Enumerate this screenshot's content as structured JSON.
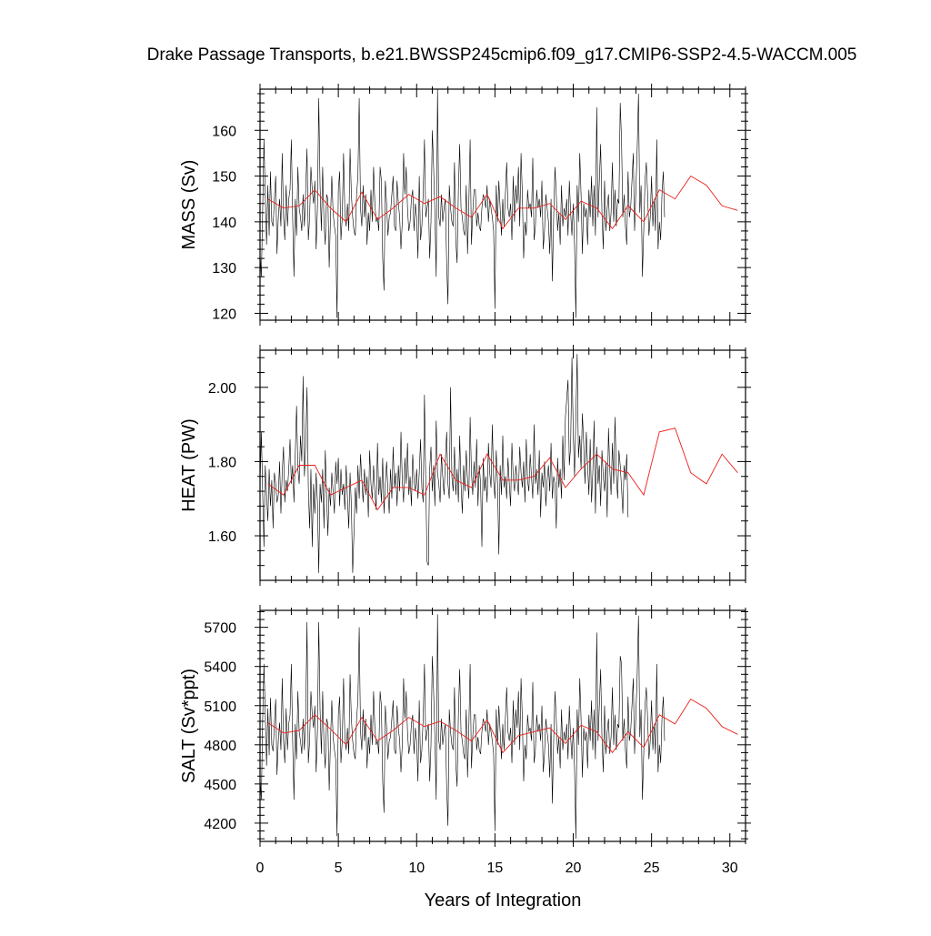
{
  "title": "Drake Passage Transports, b.e21.BWSSP245cmip6.f09_g17.CMIP6-SSP2-4.5-WACCM.005",
  "xlabel": "Years of Integration",
  "colors": {
    "monthly": "#000000",
    "annual": "#e8201a"
  },
  "chart_data": [
    {
      "type": "line",
      "ylabel": "MASS (Sv)",
      "xlim": [
        0,
        31
      ],
      "ylim": [
        118.5,
        169
      ],
      "xticks": [
        0,
        5,
        10,
        15,
        20,
        25,
        30
      ],
      "yticks": [
        120,
        130,
        140,
        150,
        160
      ],
      "ytick_labels": [
        "120",
        "130",
        "140",
        "150",
        "160"
      ],
      "grid": false,
      "annual": {
        "x": [
          0.5,
          1.5,
          2.5,
          3.5,
          4.5,
          5.5,
          6.5,
          7.5,
          8.5,
          9.5,
          10.5,
          11.5,
          12.5,
          13.5,
          14.5,
          15.5,
          16.5,
          17.5,
          18.5,
          19.5,
          20.5,
          21.5,
          22.5,
          23.5,
          24.5,
          25.5,
          26.5,
          27.5,
          28.5,
          29.5,
          30.5
        ],
        "y": [
          145,
          143,
          143.5,
          147,
          143,
          140,
          146.5,
          140.5,
          143,
          146,
          144,
          145.5,
          143,
          141,
          146,
          138.5,
          143,
          143,
          144,
          140.5,
          144.5,
          143,
          138.5,
          143.5,
          140,
          147,
          145,
          150,
          148,
          143.5,
          142.5
        ]
      },
      "monthly": {
        "start": 0,
        "step": 0.08333,
        "y": [
          133,
          128,
          142,
          158,
          146,
          135,
          148,
          137,
          151,
          140,
          139,
          145,
          150,
          133,
          141,
          145,
          139,
          155,
          141,
          136,
          148,
          139,
          145,
          147,
          158,
          141,
          128,
          145,
          137,
          152,
          143,
          141,
          138,
          146,
          139,
          147,
          156,
          136,
          141,
          152,
          147,
          144,
          149,
          134,
          143,
          167,
          148,
          138,
          152,
          140,
          135,
          146,
          145,
          130,
          141,
          150,
          142,
          139,
          137,
          119,
          147,
          151,
          136,
          141,
          155,
          142,
          139,
          144,
          138,
          156,
          146,
          141,
          138,
          137,
          146,
          150,
          167,
          143,
          139,
          148,
          141,
          146,
          135,
          142,
          138,
          147,
          140,
          152,
          144,
          140,
          141,
          138,
          152,
          149,
          132,
          125,
          149,
          144,
          137,
          141,
          142,
          146,
          150,
          139,
          138,
          149,
          144,
          141,
          134,
          140,
          155,
          146,
          152,
          143,
          138,
          140,
          145,
          147,
          138,
          144,
          141,
          132,
          150,
          136,
          139,
          146,
          158,
          141,
          143,
          145,
          132,
          140,
          160,
          152,
          142,
          128,
          169,
          141,
          139,
          146,
          140,
          143,
          145,
          131,
          122,
          148,
          143,
          140,
          139,
          153,
          136,
          131,
          147,
          157,
          143,
          141,
          138,
          137,
          148,
          133,
          144,
          158,
          135,
          142,
          147,
          147,
          139,
          142,
          139,
          138,
          143,
          146,
          145,
          143,
          148,
          140,
          145,
          143,
          141,
          138,
          121,
          148,
          140,
          149,
          143,
          137,
          145,
          139,
          146,
          153,
          143,
          141,
          144,
          136,
          150,
          140,
          148,
          144,
          152,
          139,
          155,
          146,
          132,
          140,
          137,
          147,
          143,
          144,
          141,
          154,
          136,
          139,
          147,
          143,
          145,
          141,
          149,
          134,
          138,
          146,
          143,
          140,
          133,
          145,
          127,
          141,
          152,
          146,
          138,
          142,
          135,
          148,
          139,
          143,
          141,
          145,
          137,
          149,
          142,
          137,
          144,
          135,
          119,
          148,
          140,
          155,
          146,
          133,
          144,
          141,
          143,
          135,
          147,
          141,
          150,
          139,
          148,
          137,
          165,
          141,
          149,
          157,
          142,
          134,
          149,
          138,
          143,
          146,
          138,
          142,
          153,
          140,
          147,
          139,
          145,
          144,
          166,
          158,
          141,
          146,
          139,
          135,
          151,
          141,
          143,
          149,
          155,
          138,
          147,
          156,
          168,
          142,
          148,
          128,
          138,
          149,
          153,
          146,
          137,
          141,
          150,
          139,
          145,
          138,
          158,
          134,
          140,
          136,
          146,
          151,
          141
        ]
      }
    },
    {
      "type": "line",
      "ylabel": "HEAT (PW)",
      "xlim": [
        0,
        31
      ],
      "ylim": [
        1.48,
        2.1
      ],
      "xticks": [
        0,
        5,
        10,
        15,
        20,
        25,
        30
      ],
      "yticks": [
        1.6,
        1.8,
        2.0
      ],
      "ytick_labels": [
        "1.60",
        "1.80",
        "2.00"
      ],
      "grid": false,
      "annual": {
        "x": [
          0.5,
          1.5,
          2.5,
          3.5,
          4.5,
          5.5,
          6.5,
          7.5,
          8.5,
          9.5,
          10.5,
          11.5,
          12.5,
          13.5,
          14.5,
          15.5,
          16.5,
          17.5,
          18.5,
          19.5,
          20.5,
          21.5,
          22.5,
          23.5,
          24.5,
          25.5,
          26.5,
          27.5,
          28.5,
          29.5,
          30.5
        ],
        "y": [
          1.74,
          1.71,
          1.79,
          1.79,
          1.71,
          1.73,
          1.75,
          1.67,
          1.73,
          1.73,
          1.71,
          1.82,
          1.75,
          1.73,
          1.82,
          1.75,
          1.75,
          1.76,
          1.81,
          1.73,
          1.78,
          1.82,
          1.78,
          1.77,
          1.71,
          1.88,
          1.89,
          1.77,
          1.74,
          1.82,
          1.77
        ]
      },
      "monthly": {
        "start": 0,
        "step": 0.08333,
        "y": [
          1.74,
          1.88,
          1.72,
          1.57,
          1.79,
          1.71,
          1.64,
          1.78,
          1.68,
          1.75,
          1.62,
          1.77,
          1.74,
          1.69,
          1.71,
          1.8,
          1.66,
          1.77,
          1.84,
          1.69,
          1.75,
          1.72,
          1.78,
          1.86,
          1.74,
          1.79,
          1.69,
          1.82,
          1.95,
          1.78,
          1.74,
          1.87,
          1.8,
          2.03,
          1.76,
          1.84,
          2.0,
          1.73,
          1.62,
          1.78,
          1.57,
          1.74,
          1.66,
          1.77,
          1.69,
          1.5,
          1.74,
          1.69,
          1.78,
          1.62,
          1.83,
          1.71,
          1.6,
          1.73,
          1.68,
          1.77,
          1.72,
          1.66,
          1.8,
          1.74,
          1.81,
          1.68,
          1.78,
          1.71,
          1.74,
          1.67,
          1.79,
          1.7,
          1.62,
          1.77,
          1.68,
          1.5,
          1.61,
          1.73,
          1.66,
          1.79,
          1.7,
          1.82,
          1.75,
          1.69,
          1.78,
          1.71,
          1.76,
          1.65,
          1.83,
          1.74,
          1.7,
          1.79,
          1.72,
          1.67,
          1.85,
          1.71,
          1.76,
          1.69,
          1.81,
          1.66,
          1.74,
          1.8,
          1.72,
          1.66,
          1.78,
          1.7,
          1.84,
          1.73,
          1.77,
          1.68,
          1.79,
          1.72,
          1.88,
          1.75,
          1.69,
          1.81,
          1.74,
          1.85,
          1.71,
          1.76,
          1.68,
          1.82,
          1.75,
          1.72,
          1.78,
          1.7,
          1.77,
          1.86,
          1.73,
          1.69,
          1.98,
          1.74,
          1.53,
          1.52,
          1.78,
          1.84,
          1.72,
          1.79,
          1.68,
          1.91,
          1.77,
          1.74,
          1.69,
          1.82,
          1.76,
          1.71,
          1.8,
          1.88,
          1.74,
          1.7,
          2.0,
          1.76,
          1.72,
          1.84,
          1.71,
          1.78,
          1.69,
          1.87,
          1.74,
          1.66,
          1.79,
          1.72,
          1.83,
          1.75,
          1.7,
          1.92,
          1.77,
          1.71,
          1.8,
          1.73,
          1.86,
          1.68,
          1.79,
          1.74,
          1.57,
          1.81,
          1.72,
          1.76,
          1.69,
          1.85,
          1.77,
          1.73,
          1.9,
          1.75,
          1.7,
          1.83,
          1.74,
          1.55,
          1.79,
          1.71,
          1.87,
          1.73,
          1.76,
          1.7,
          1.81,
          1.74,
          1.68,
          1.85,
          1.76,
          1.72,
          1.79,
          1.75,
          1.71,
          1.84,
          1.77,
          1.73,
          1.8,
          1.69,
          1.86,
          1.75,
          1.72,
          1.82,
          1.76,
          1.7,
          1.9,
          1.74,
          1.78,
          1.71,
          1.83,
          1.65,
          1.77,
          1.73,
          1.8,
          1.68,
          1.75,
          1.79,
          1.72,
          1.85,
          1.7,
          1.76,
          1.74,
          1.62,
          1.81,
          1.73,
          1.78,
          1.7,
          1.87,
          1.75,
          1.92,
          1.97,
          2.02,
          1.79,
          1.84,
          2.08,
          1.88,
          1.76,
          1.92,
          2.09,
          1.81,
          1.87,
          1.78,
          1.93,
          1.85,
          1.74,
          1.88,
          1.79,
          1.71,
          1.86,
          1.69,
          1.77,
          1.91,
          1.66,
          1.84,
          1.74,
          1.79,
          1.68,
          1.83,
          1.76,
          1.72,
          1.8,
          1.65,
          1.89,
          1.78,
          1.71,
          1.85,
          1.74,
          1.92,
          1.77,
          1.7,
          1.83,
          1.79,
          1.73,
          1.66,
          1.79,
          1.75,
          1.82,
          1.65
        ]
      }
    },
    {
      "type": "line",
      "ylabel": "SALT (Sv*ppt)",
      "xlim": [
        0,
        31
      ],
      "ylim": [
        4060,
        5830
      ],
      "xticks": [
        0,
        5,
        10,
        15,
        20,
        25,
        30
      ],
      "yticks": [
        4200,
        4500,
        4800,
        5100,
        5400,
        5700
      ],
      "ytick_labels": [
        "4200",
        "4500",
        "4800",
        "5100",
        "5400",
        "5700"
      ],
      "grid": false,
      "annual": {
        "x": [
          0.5,
          1.5,
          2.5,
          3.5,
          4.5,
          5.5,
          6.5,
          7.5,
          8.5,
          9.5,
          10.5,
          11.5,
          12.5,
          13.5,
          14.5,
          15.5,
          16.5,
          17.5,
          18.5,
          19.5,
          20.5,
          21.5,
          22.5,
          23.5,
          24.5,
          25.5,
          26.5,
          27.5,
          28.5,
          29.5,
          30.5
        ],
        "y": [
          4970,
          4890,
          4910,
          5030,
          4920,
          4800,
          5010,
          4830,
          4910,
          5010,
          4940,
          4980,
          4910,
          4830,
          4990,
          4740,
          4870,
          4900,
          4930,
          4810,
          4950,
          4900,
          4740,
          4900,
          4780,
          5030,
          4960,
          5150,
          5080,
          4940,
          4880
        ]
      },
      "monthly": {
        "start": 0,
        "step": 0.08333,
        "y": [
          4550,
          4380,
          4980,
          5420,
          5050,
          4640,
          5080,
          4720,
          5160,
          4800,
          4750,
          4960,
          5150,
          4570,
          4830,
          4970,
          4760,
          5310,
          4830,
          4660,
          5080,
          4760,
          4960,
          5030,
          5420,
          4830,
          4380,
          4960,
          4690,
          5210,
          4900,
          4830,
          4730,
          5000,
          4760,
          5030,
          5740,
          4660,
          4830,
          5210,
          5030,
          4930,
          5100,
          4590,
          4900,
          5740,
          5070,
          4730,
          5210,
          4800,
          4620,
          5000,
          4960,
          4450,
          4830,
          5140,
          4860,
          4760,
          4690,
          4100,
          5030,
          5170,
          4660,
          4830,
          5310,
          4860,
          4760,
          4930,
          4730,
          5340,
          5000,
          4830,
          4730,
          4690,
          5000,
          5140,
          5700,
          4900,
          4760,
          5070,
          4830,
          5000,
          4620,
          4860,
          4730,
          5030,
          4800,
          5210,
          4930,
          4800,
          4830,
          4730,
          5210,
          5100,
          4520,
          4280,
          5100,
          4930,
          4690,
          4830,
          4860,
          5000,
          5140,
          4760,
          4730,
          5100,
          4930,
          4830,
          4590,
          4800,
          5310,
          5000,
          5210,
          4900,
          4730,
          4800,
          4960,
          5030,
          4730,
          4930,
          4830,
          4520,
          5140,
          4660,
          4760,
          5000,
          5420,
          4830,
          4900,
          4960,
          4520,
          4800,
          5480,
          5210,
          4860,
          4380,
          5800,
          4830,
          4760,
          5000,
          4800,
          4900,
          4960,
          4480,
          4180,
          5070,
          4900,
          4800,
          4760,
          5240,
          4660,
          4480,
          5030,
          5380,
          4900,
          4830,
          4730,
          4690,
          5070,
          4550,
          4930,
          5420,
          4620,
          4860,
          5030,
          5030,
          4760,
          4860,
          4760,
          4730,
          4900,
          5000,
          4960,
          4900,
          5070,
          4800,
          4960,
          4900,
          4830,
          4730,
          4140,
          5070,
          4800,
          5100,
          4900,
          4690,
          4960,
          4760,
          5000,
          5240,
          4900,
          4830,
          4930,
          4660,
          5140,
          4800,
          5070,
          4930,
          5210,
          4760,
          5310,
          5000,
          4520,
          4800,
          4690,
          5030,
          4900,
          4930,
          4830,
          5280,
          4660,
          4760,
          5030,
          4900,
          4960,
          4830,
          5100,
          4590,
          4730,
          5000,
          4900,
          4800,
          4550,
          4960,
          4350,
          4830,
          5210,
          5000,
          4730,
          4860,
          4620,
          5070,
          4760,
          4900,
          4830,
          4960,
          4690,
          5100,
          4860,
          4690,
          4930,
          4620,
          4080,
          5070,
          4800,
          5310,
          5000,
          4550,
          4930,
          4830,
          4900,
          4620,
          5030,
          4830,
          5140,
          4760,
          5070,
          4690,
          5660,
          4830,
          5100,
          5380,
          4860,
          4590,
          5100,
          4730,
          4900,
          5000,
          4730,
          4860,
          5240,
          4800,
          5030,
          4760,
          4960,
          4930,
          5480,
          5420,
          4830,
          5000,
          4760,
          4620,
          5170,
          4830,
          4900,
          5100,
          5310,
          4730,
          5030,
          5340,
          5790,
          4860,
          5070,
          4380,
          4730,
          5100,
          5240,
          5000,
          4690,
          4830,
          5140,
          4760,
          4960,
          4730,
          5420,
          4590,
          4800,
          4660,
          5000,
          5170,
          4830
        ]
      }
    }
  ]
}
